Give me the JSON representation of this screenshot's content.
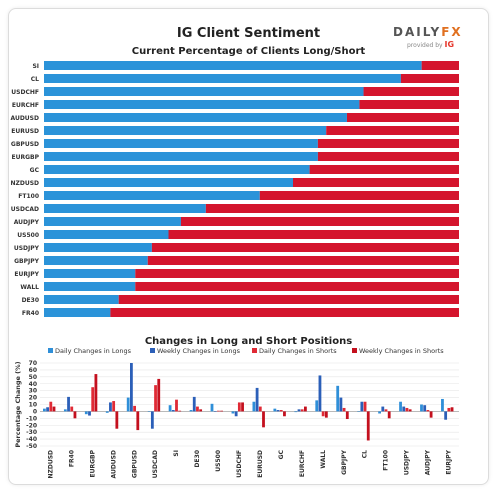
{
  "header": {
    "title": "IG Client Sentiment",
    "logo_main": "DAILY",
    "logo_accent": "FX",
    "logo_provided": "provided by",
    "logo_brand": "IG"
  },
  "colors": {
    "long": "#2b93d9",
    "short": "#d4152d",
    "daily_long": "#2f8fd8",
    "weekly_long": "#2b5fb8",
    "daily_short": "#e02a35",
    "weekly_short": "#c4101e"
  },
  "chart_data": [
    {
      "type": "bar",
      "orientation": "horizontal",
      "stacked": true,
      "title": "Current Percentage of Clients Long/Short",
      "categories": [
        "SI",
        "CL",
        "USDCHF",
        "EURCHF",
        "AUDUSD",
        "EURUSD",
        "GBPUSD",
        "EURGBP",
        "GC",
        "NZDUSD",
        "FT100",
        "USDCAD",
        "AUDJPY",
        "US500",
        "USDJPY",
        "GBPJPY",
        "EURJPY",
        "WALL",
        "DE30",
        "FR40"
      ],
      "series": [
        {
          "values": [
            91,
            86,
            77,
            76,
            73,
            68,
            66,
            66,
            64,
            60,
            52,
            39,
            33,
            30,
            26,
            25,
            22,
            22,
            18,
            16
          ]
        },
        {
          "values": [
            9,
            14,
            23,
            24,
            27,
            32,
            34,
            34,
            36,
            40,
            48,
            61,
            67,
            70,
            74,
            75,
            78,
            78,
            82,
            84
          ]
        }
      ],
      "xlim": [
        0,
        100
      ]
    },
    {
      "type": "bar",
      "title": "Changes in Long and Short Positions",
      "ylabel": "Percentage Change (%)",
      "ylim": [
        -50,
        70
      ],
      "yticks": [
        70,
        60,
        50,
        40,
        30,
        20,
        10,
        0,
        -10,
        -20,
        -30,
        -40,
        -50
      ],
      "legend_position": "top",
      "categories": [
        "NZDUSD",
        "FR40",
        "EURGBP",
        "AUDUSD",
        "GBPUSD",
        "USDCAD",
        "SI",
        "DE30",
        "US500",
        "USDCHF",
        "EURUSD",
        "GC",
        "EURCHF",
        "WALL",
        "GBPJPY",
        "CL",
        "FT100",
        "USDJPY",
        "AUDJPY",
        "EURJPY"
      ],
      "series": [
        {
          "name": "Daily Changes in Longs",
          "values": [
            4,
            3,
            -4,
            -2,
            20,
            0,
            9,
            2,
            11,
            -3,
            14,
            4,
            -1,
            16,
            37,
            0,
            -3,
            14,
            10,
            18
          ]
        },
        {
          "name": "Weekly Changes in Longs",
          "values": [
            6,
            21,
            -6,
            13,
            70,
            -25,
            2,
            21,
            0,
            -7,
            34,
            2,
            3,
            52,
            20,
            14,
            7,
            7,
            9,
            -12
          ]
        },
        {
          "name": "Daily Changes in Shorts",
          "values": [
            14,
            7,
            35,
            15,
            8,
            38,
            17,
            7,
            1,
            13,
            7,
            2,
            3,
            -7,
            5,
            14,
            3,
            5,
            2,
            5
          ]
        },
        {
          "name": "Weekly Changes in Shorts",
          "values": [
            7,
            -10,
            54,
            -25,
            -27,
            47,
            1,
            3,
            1,
            13,
            -23,
            -7,
            7,
            -9,
            -11,
            -42,
            -10,
            3,
            -9,
            6
          ]
        }
      ]
    }
  ]
}
